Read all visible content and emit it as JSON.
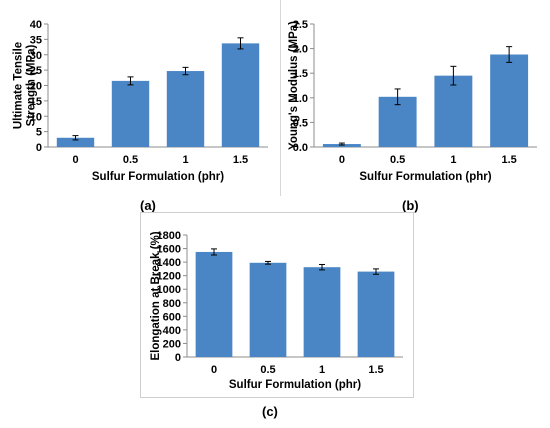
{
  "captions": {
    "a": "(a)",
    "b": "(b)",
    "c": "(c)"
  },
  "chart_data": [
    {
      "id": "a",
      "type": "bar",
      "categories": [
        "0",
        "0.5",
        "1",
        "1.5"
      ],
      "values": [
        3.0,
        21.5,
        24.7,
        33.7
      ],
      "errors": [
        0.7,
        1.3,
        1.2,
        1.8
      ],
      "xlabel": "Sulfur Formulation (phr)",
      "ylabel_lines": [
        "Ultimate Tensile",
        "Strength (MPa)"
      ],
      "ylim": [
        0,
        40
      ],
      "yticks": [
        0,
        5,
        10,
        15,
        20,
        25,
        30,
        35,
        40
      ],
      "ytick_labels": [
        "0",
        "5",
        "10",
        "15",
        "20",
        "25",
        "30",
        "35",
        "40"
      ],
      "grid": false,
      "bar_color": "#4a86c5"
    },
    {
      "id": "b",
      "type": "bar",
      "categories": [
        "0",
        "0.5",
        "1",
        "1.5"
      ],
      "values": [
        0.06,
        1.02,
        1.45,
        1.88
      ],
      "errors": [
        0.02,
        0.16,
        0.19,
        0.16
      ],
      "xlabel": "Sulfur Formulation (phr)",
      "ylabel_lines": [
        "Young's Modulus (MPa)"
      ],
      "ylim": [
        0,
        2.5
      ],
      "yticks": [
        0,
        0.5,
        1.0,
        1.5,
        2.0,
        2.5
      ],
      "ytick_labels": [
        "0.0",
        "0.5",
        "1.0",
        "1.5",
        "2.0",
        "2.5"
      ],
      "grid": false,
      "bar_color": "#4a86c5"
    },
    {
      "id": "c",
      "type": "bar",
      "categories": [
        "0",
        "0.5",
        "1",
        "1.5"
      ],
      "values": [
        1550,
        1390,
        1325,
        1260
      ],
      "errors": [
        45,
        20,
        40,
        40
      ],
      "xlabel": "Sulfur Formulation (phr)",
      "ylabel_lines": [
        "Elongation at Break (%)"
      ],
      "ylim": [
        0,
        1800
      ],
      "yticks": [
        0,
        200,
        400,
        600,
        800,
        1000,
        1200,
        1400,
        1600,
        1800
      ],
      "ytick_labels": [
        "0",
        "200",
        "400",
        "600",
        "800",
        "1000",
        "1200",
        "1400",
        "1600",
        "1800"
      ],
      "grid": false,
      "bar_color": "#4a86c5"
    }
  ]
}
